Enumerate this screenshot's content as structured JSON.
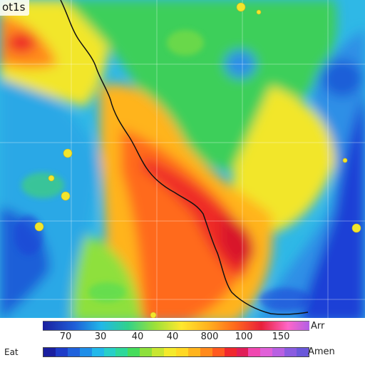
{
  "title": "ot1s",
  "legend_top": {
    "ticks": [
      "70",
      "30",
      "40",
      "40",
      "800",
      "100",
      "150"
    ],
    "end_label": "Arr"
  },
  "legend_bottom": {
    "left_label": "Eat",
    "end_label": "Amen",
    "swatches": [
      "#1a1fa0",
      "#1e3cc8",
      "#2062dc",
      "#1f8ee8",
      "#22b8ea",
      "#28cfc8",
      "#2ed89a",
      "#46dc5c",
      "#8ee03c",
      "#c8e632",
      "#f4ea2c",
      "#ffd824",
      "#ffb41e",
      "#ff8a1c",
      "#ff5a20",
      "#f0282e",
      "#e01e58",
      "#f048b0",
      "#e060d8",
      "#b860e2",
      "#8a5ce0",
      "#6a58da"
    ]
  },
  "colors": {
    "water_deep": "#1e3fd6",
    "water_mid": "#2f8fe6",
    "water_light": "#4ac2e8",
    "land_green": "#3ccf5a",
    "land_yellow": "#f2e62c",
    "land_orange": "#ffa41e",
    "land_red": "#ee2a26",
    "coastline": "#111111"
  }
}
